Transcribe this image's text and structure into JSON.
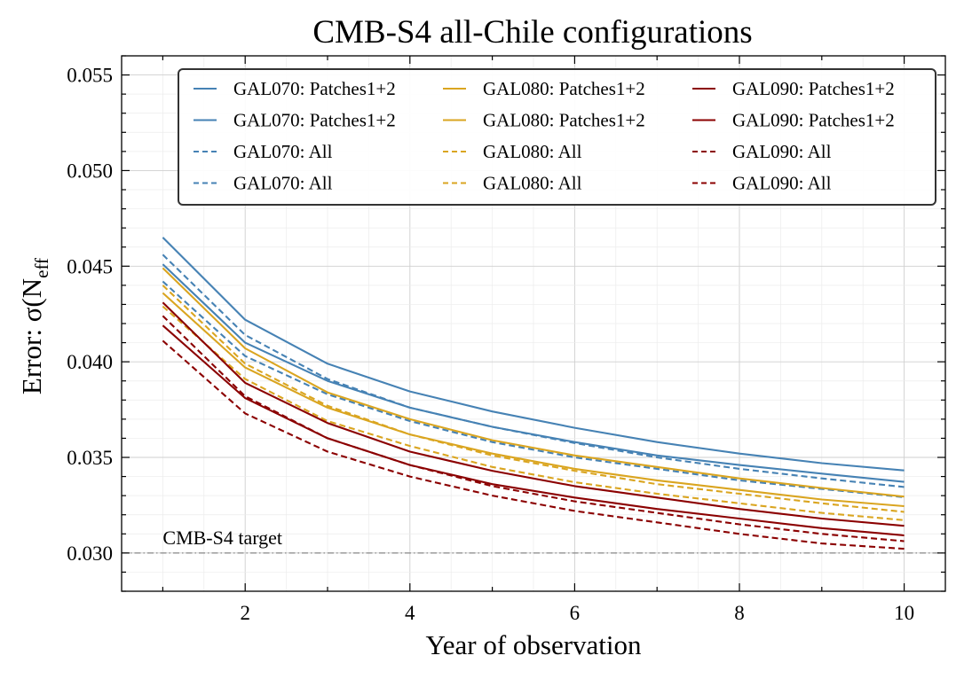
{
  "chart_data": {
    "type": "line",
    "title": "CMB-S4 all-Chile configurations",
    "xlabel": "Year of observation",
    "ylabel": "Error: σ(N",
    "ylabel_sub": "eff",
    "xlim": [
      0.5,
      10.5
    ],
    "ylim": [
      0.028,
      0.056
    ],
    "xticks": [
      2,
      4,
      6,
      8,
      10
    ],
    "xtick_labels": [
      "2",
      "4",
      "6",
      "8",
      "10"
    ],
    "yticks": [
      0.03,
      0.035,
      0.04,
      0.045,
      0.05,
      0.055
    ],
    "ytick_labels": [
      "0.030",
      "0.035",
      "0.040",
      "0.045",
      "0.050",
      "0.055"
    ],
    "grid": true,
    "legend_position": "top-right",
    "x": [
      1,
      2,
      3,
      4,
      5,
      6,
      7,
      8,
      9,
      10
    ],
    "series": [
      {
        "name": "GAL070: Patches1+2",
        "color": "#4682b4",
        "style": "solid",
        "values": [
          0.0465,
          0.0422,
          0.0399,
          0.03845,
          0.0374,
          0.03655,
          0.0358,
          0.0352,
          0.0347,
          0.03432
        ]
      },
      {
        "name": "GAL070: Patches1+2",
        "color": "#4682b4",
        "style": "solid",
        "values": [
          0.0451,
          0.041,
          0.039,
          0.0376,
          0.0366,
          0.0358,
          0.0351,
          0.0346,
          0.03415,
          0.03372
        ]
      },
      {
        "name": "GAL070: All",
        "color": "#4682b4",
        "style": "dashed",
        "values": [
          0.0456,
          0.0414,
          0.0391,
          0.0376,
          0.0366,
          0.03575,
          0.035,
          0.0344,
          0.0339,
          0.03345
        ]
      },
      {
        "name": "GAL070: All",
        "color": "#4682b4",
        "style": "dashed",
        "values": [
          0.0442,
          0.0403,
          0.0383,
          0.0369,
          0.0358,
          0.035,
          0.0344,
          0.0338,
          0.03335,
          0.03292
        ]
      },
      {
        "name": "GAL080: Patches1+2",
        "color": "#daa520",
        "style": "solid",
        "values": [
          0.0449,
          0.0407,
          0.0384,
          0.037,
          0.0359,
          0.0351,
          0.0345,
          0.0339,
          0.0334,
          0.03295
        ]
      },
      {
        "name": "GAL080: Patches1+2",
        "color": "#daa520",
        "style": "solid",
        "values": [
          0.0436,
          0.0397,
          0.0376,
          0.0362,
          0.0352,
          0.0344,
          0.0338,
          0.0333,
          0.0328,
          0.03245
        ]
      },
      {
        "name": "GAL080: All",
        "color": "#daa520",
        "style": "dashed",
        "values": [
          0.044,
          0.0399,
          0.0377,
          0.0362,
          0.0351,
          0.0343,
          0.0336,
          0.0331,
          0.0326,
          0.03215
        ]
      },
      {
        "name": "GAL080: All",
        "color": "#daa520",
        "style": "dashed",
        "values": [
          0.0429,
          0.0391,
          0.0369,
          0.0356,
          0.0345,
          0.0337,
          0.0331,
          0.0326,
          0.0321,
          0.03172
        ]
      },
      {
        "name": "GAL090: Patches1+2",
        "color": "#8b0000",
        "style": "solid",
        "values": [
          0.0431,
          0.0389,
          0.0368,
          0.0353,
          0.0343,
          0.0335,
          0.0329,
          0.0323,
          0.0318,
          0.03142
        ]
      },
      {
        "name": "GAL090: Patches1+2",
        "color": "#8b0000",
        "style": "solid",
        "values": [
          0.0419,
          0.0381,
          0.036,
          0.0346,
          0.0336,
          0.0329,
          0.0323,
          0.0318,
          0.0313,
          0.03092
        ]
      },
      {
        "name": "GAL090: All",
        "color": "#8b0000",
        "style": "dashed",
        "values": [
          0.0424,
          0.0382,
          0.036,
          0.0346,
          0.0335,
          0.0327,
          0.0321,
          0.0315,
          0.031,
          0.03062
        ]
      },
      {
        "name": "GAL090: All",
        "color": "#8b0000",
        "style": "dashed",
        "values": [
          0.0411,
          0.0373,
          0.0353,
          0.034,
          0.033,
          0.0322,
          0.0316,
          0.031,
          0.0305,
          0.03022
        ]
      }
    ],
    "annotations": [
      {
        "text": "CMB-S4 target",
        "y": 0.03,
        "line_style": "dashdot",
        "color": "#888888"
      }
    ]
  }
}
